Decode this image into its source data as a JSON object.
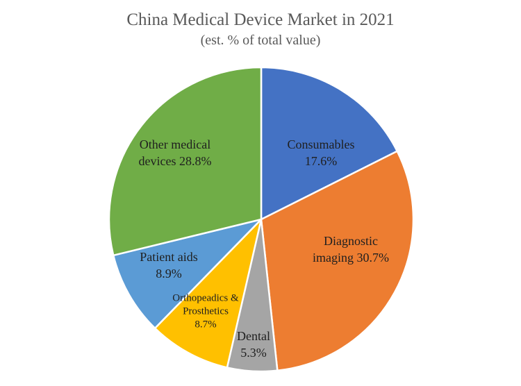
{
  "chart_data": {
    "type": "pie",
    "title": "China Medical Device Market in 2021",
    "subtitle": "(est. % of total value)",
    "slices": [
      {
        "name": "Consumables",
        "value": 17.6,
        "label": [
          "Consumables",
          "17.6%"
        ],
        "color": "#4472C4"
      },
      {
        "name": "Diagnostic imaging",
        "value": 30.7,
        "label": [
          "Diagnostic",
          "imaging  30.7%"
        ],
        "color": "#ED7D31"
      },
      {
        "name": "Dental",
        "value": 5.3,
        "label": [
          "Dental",
          "5.3%"
        ],
        "color": "#A5A5A5"
      },
      {
        "name": "Orthopeadics & Prosthetics",
        "value": 8.7,
        "label": [
          "Orthopeadics &",
          "Prosthetics",
          "8.7%"
        ],
        "color": "#FFC000"
      },
      {
        "name": "Patient aids",
        "value": 8.9,
        "label": [
          "Patient aids",
          "8.9%"
        ],
        "color": "#5B9BD5"
      },
      {
        "name": "Other medical devices",
        "value": 28.8,
        "label": [
          "Other medical",
          "devices 28.8%"
        ],
        "color": "#70AD47"
      }
    ]
  }
}
